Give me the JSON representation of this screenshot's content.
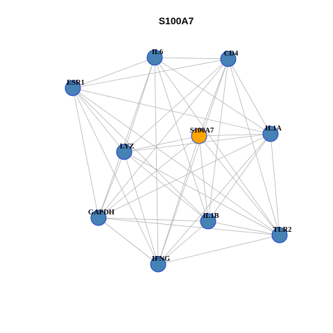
{
  "title": "S100A7",
  "colors": {
    "node_fill": "#4682b4",
    "node_border": "#1f3fd1",
    "highlight_fill": "#ffa500",
    "edge": "#b3b3b3",
    "background": "#ffffff"
  },
  "network": {
    "center": "S100A7",
    "nodes": [
      {
        "id": "IL6",
        "label": "IL6"
      },
      {
        "id": "CD4",
        "label": "CD4"
      },
      {
        "id": "ESR1",
        "label": "ESR1"
      },
      {
        "id": "S100A7",
        "label": "S100A7",
        "highlight": true
      },
      {
        "id": "IL1A",
        "label": "IL1A"
      },
      {
        "id": "LYZ",
        "label": "LYZ"
      },
      {
        "id": "GAPDH",
        "label": "GAPDH"
      },
      {
        "id": "IL1B",
        "label": "IL1B"
      },
      {
        "id": "TLR2",
        "label": "TLR2"
      },
      {
        "id": "IFNG",
        "label": "IFNG"
      }
    ],
    "edges": [
      [
        "IL6",
        "CD4"
      ],
      [
        "IL6",
        "ESR1"
      ],
      [
        "IL6",
        "LYZ"
      ],
      [
        "IL6",
        "GAPDH"
      ],
      [
        "IL6",
        "IL1B"
      ],
      [
        "IL6",
        "TLR2"
      ],
      [
        "IL6",
        "IFNG"
      ],
      [
        "IL6",
        "IL1A"
      ],
      [
        "CD4",
        "ESR1"
      ],
      [
        "CD4",
        "LYZ"
      ],
      [
        "CD4",
        "GAPDH"
      ],
      [
        "CD4",
        "IL1B"
      ],
      [
        "CD4",
        "TLR2"
      ],
      [
        "CD4",
        "IFNG"
      ],
      [
        "CD4",
        "IL1A"
      ],
      [
        "CD4",
        "S100A7"
      ],
      [
        "ESR1",
        "IL1A"
      ],
      [
        "ESR1",
        "LYZ"
      ],
      [
        "ESR1",
        "GAPDH"
      ],
      [
        "ESR1",
        "IL1B"
      ],
      [
        "ESR1",
        "TLR2"
      ],
      [
        "ESR1",
        "IFNG"
      ],
      [
        "S100A7",
        "IL1A"
      ],
      [
        "S100A7",
        "LYZ"
      ],
      [
        "S100A7",
        "GAPDH"
      ],
      [
        "S100A7",
        "IL1B"
      ],
      [
        "S100A7",
        "TLR2"
      ],
      [
        "S100A7",
        "IFNG"
      ],
      [
        "IL1A",
        "LYZ"
      ],
      [
        "IL1A",
        "GAPDH"
      ],
      [
        "IL1A",
        "IL1B"
      ],
      [
        "IL1A",
        "TLR2"
      ],
      [
        "IL1A",
        "IFNG"
      ],
      [
        "LYZ",
        "GAPDH"
      ],
      [
        "LYZ",
        "IL1B"
      ],
      [
        "LYZ",
        "TLR2"
      ],
      [
        "LYZ",
        "IFNG"
      ],
      [
        "GAPDH",
        "IL1B"
      ],
      [
        "GAPDH",
        "TLR2"
      ],
      [
        "GAPDH",
        "IFNG"
      ],
      [
        "IL1B",
        "TLR2"
      ],
      [
        "IL1B",
        "IFNG"
      ],
      [
        "TLR2",
        "IFNG"
      ]
    ]
  }
}
